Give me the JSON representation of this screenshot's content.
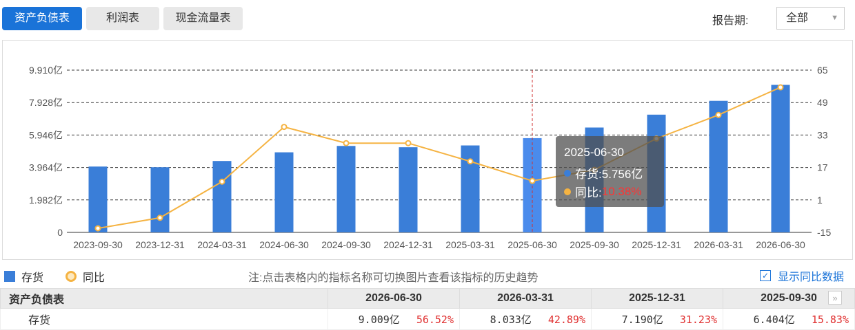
{
  "tabs": [
    {
      "label": "资产负债表",
      "active": true
    },
    {
      "label": "利润表",
      "active": false
    },
    {
      "label": "现金流量表",
      "active": false
    }
  ],
  "period": {
    "label": "报告期:",
    "selected": "全部"
  },
  "chart_data": {
    "type": "bar+line",
    "categories": [
      "2023-09-30",
      "2023-12-31",
      "2024-03-31",
      "2024-06-30",
      "2024-09-30",
      "2024-12-31",
      "2025-03-31",
      "2025-06-30",
      "2025-09-30",
      "2025-12-31",
      "2026-03-31",
      "2026-06-30"
    ],
    "series": [
      {
        "name": "存货",
        "type": "bar",
        "axis": "left",
        "color": "#3a7ed8",
        "values": [
          4.02,
          3.98,
          4.36,
          4.89,
          5.28,
          5.2,
          5.31,
          5.756,
          6.404,
          7.19,
          8.033,
          9.009
        ]
      },
      {
        "name": "同比",
        "type": "line",
        "axis": "right",
        "color": "#f5b342",
        "values": [
          -13.0,
          -7.8,
          10.0,
          37.0,
          29.0,
          29.0,
          20.0,
          10.38,
          15.83,
          31.23,
          42.89,
          56.52
        ]
      }
    ],
    "left_axis": {
      "ticks": [
        "0",
        "1.982亿",
        "3.964亿",
        "5.946亿",
        "7.928亿",
        "9.910亿"
      ],
      "min": 0,
      "max": 9.91
    },
    "right_axis": {
      "ticks": [
        "-15",
        "1",
        "17",
        "33",
        "49",
        "65"
      ],
      "min": -15,
      "max": 65
    },
    "highlight_category": "2025-06-30",
    "grid": true
  },
  "tooltip": {
    "date": "2025-06-30",
    "rows": [
      {
        "label": "存货:",
        "value": "5.756亿",
        "color": "#3a7ed8"
      },
      {
        "label": "同比:",
        "value": "10.38%",
        "color": "#f5b342"
      }
    ]
  },
  "legend": [
    {
      "label": "存货"
    },
    {
      "label": "同比"
    }
  ],
  "note": "注:点击表格内的指标名称可切换图片查看该指标的历史趋势",
  "show_yoy": {
    "label": "显示同比数据",
    "checked": true,
    "check_glyph": "✓"
  },
  "table": {
    "header_title": "资产负债表",
    "columns": [
      "2026-06-30",
      "2026-03-31",
      "2025-12-31",
      "2025-09-30"
    ],
    "rows": [
      {
        "name": "存货",
        "cells": [
          {
            "value": "9.009亿",
            "pct": "56.52%"
          },
          {
            "value": "8.033亿",
            "pct": "42.89%"
          },
          {
            "value": "7.190亿",
            "pct": "31.23%"
          },
          {
            "value": "6.404亿",
            "pct": "15.83%"
          }
        ]
      }
    ],
    "nav_glyph": "»"
  }
}
